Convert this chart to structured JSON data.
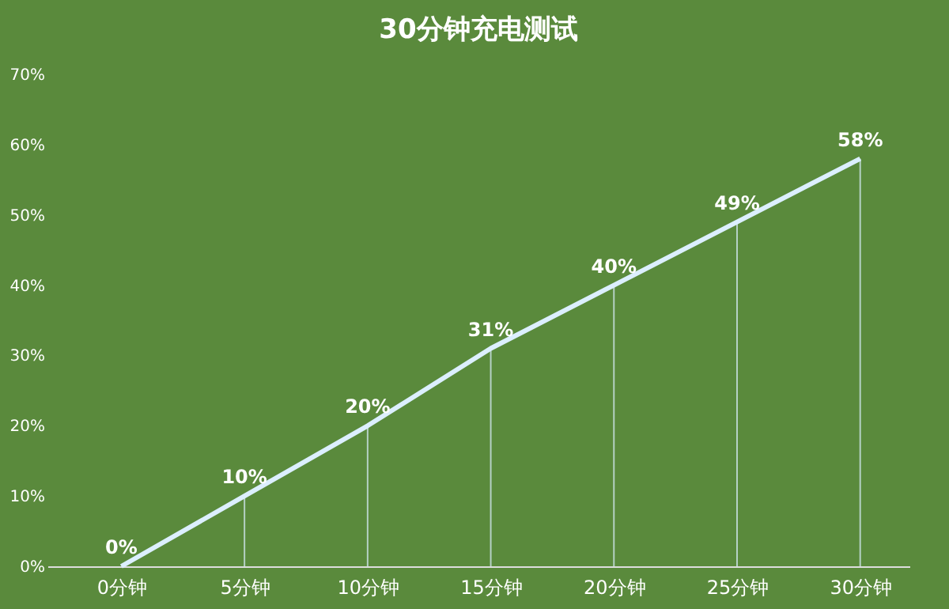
{
  "chart_data": {
    "type": "line",
    "title": "30分钟充电测试",
    "categories": [
      "0分钟",
      "5分钟",
      "10分钟",
      "15分钟",
      "20分钟",
      "25分钟",
      "30分钟"
    ],
    "series": [
      {
        "color": "#dcefff",
        "values": [
          0,
          10,
          20,
          31,
          40,
          49,
          58
        ]
      }
    ],
    "ylim": [
      0,
      70
    ],
    "yticks": [
      {
        "value": 0,
        "label": "0%"
      },
      {
        "value": 10,
        "label": "10%"
      },
      {
        "value": 20,
        "label": "20%"
      },
      {
        "value": 30,
        "label": "30%"
      },
      {
        "value": 40,
        "label": "40%"
      },
      {
        "value": 50,
        "label": "50%"
      },
      {
        "value": 60,
        "label": "60%"
      },
      {
        "value": 70,
        "label": "70%"
      }
    ],
    "value_labels": [
      "0%",
      "10%",
      "20%",
      "31%",
      "40%",
      "49%",
      "58%"
    ],
    "grid": "x",
    "marker": "none",
    "line_style": "solid"
  }
}
